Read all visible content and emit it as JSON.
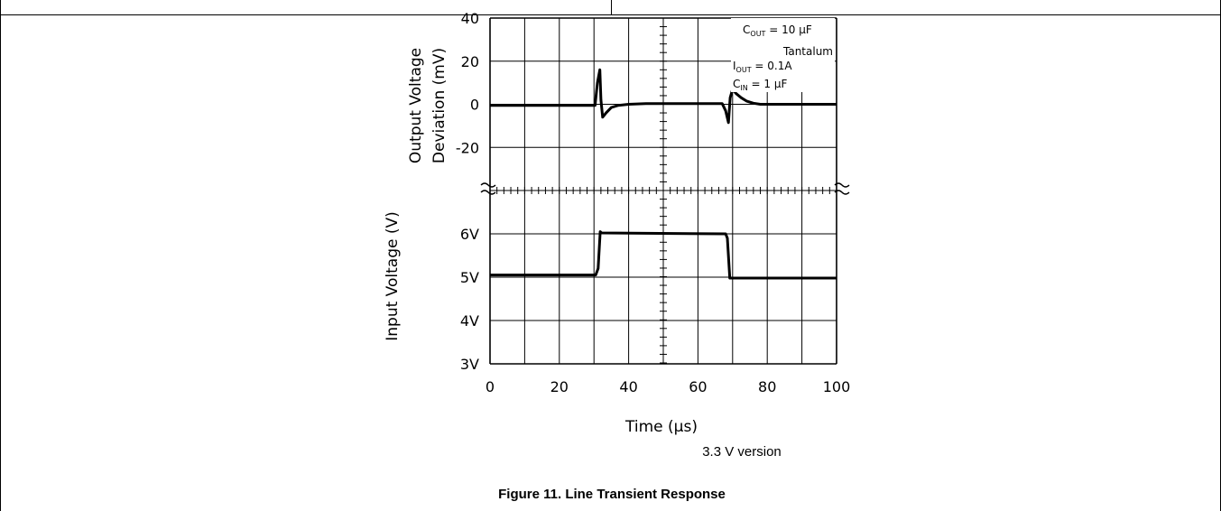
{
  "chart_data": {
    "type": "line",
    "xlabel_main": "Time",
    "xlabel_unit": "(µs)",
    "x_ticks": [
      "0",
      "20",
      "40",
      "60",
      "80",
      "100"
    ],
    "xlim": [
      0,
      100
    ],
    "grid": true,
    "top_panel": {
      "ylabel_line1": "Output Voltage",
      "ylabel_line2": "Deviation (mV)",
      "ylim": [
        -40,
        40
      ],
      "y_ticks": [
        "40",
        "20",
        "0",
        "-20"
      ],
      "series": [
        {
          "x": [
            0,
            30.3,
            31.0,
            31.7,
            32.0,
            32.5,
            33.5,
            35,
            37,
            40,
            45,
            50,
            55,
            60,
            65,
            67.0,
            68.0,
            68.8,
            69.3,
            70.0,
            71,
            72.5,
            74,
            76,
            78,
            80,
            85,
            90,
            100
          ],
          "y": [
            -0.5,
            -0.5,
            10,
            16,
            2,
            -6,
            -4,
            -1.5,
            -0.5,
            0,
            0.3,
            0.3,
            0.3,
            0.3,
            0.3,
            0.3,
            -3,
            -8.5,
            3,
            7,
            5,
            3,
            1.5,
            0.5,
            0,
            0,
            0,
            0,
            0
          ]
        }
      ]
    },
    "bottom_panel": {
      "ylabel": "Input Voltage (V)",
      "ylim": [
        3,
        7
      ],
      "y_ticks": [
        "6V",
        "5V",
        "4V",
        "3V"
      ],
      "series": [
        {
          "x": [
            0,
            30.5,
            31.2,
            31.8,
            32.2,
            68.0,
            68.5,
            69.2,
            100
          ],
          "y": [
            5.05,
            5.05,
            5.2,
            6.05,
            6.02,
            6.0,
            5.9,
            4.98,
            4.98
          ]
        }
      ]
    },
    "legend": {
      "c_out": {
        "main": "C",
        "sub": "OUT",
        "rest": " = 10 µF"
      },
      "tantalum": "Tantalum",
      "i_out": {
        "main": "I",
        "sub": "OUT",
        "rest": " = 0.1A"
      },
      "c_in": {
        "main": "C",
        "sub": "IN",
        "rest": " = 1 µF"
      }
    },
    "version_note": "3.3 V version"
  },
  "caption": "Figure 11. Line Transient Response"
}
